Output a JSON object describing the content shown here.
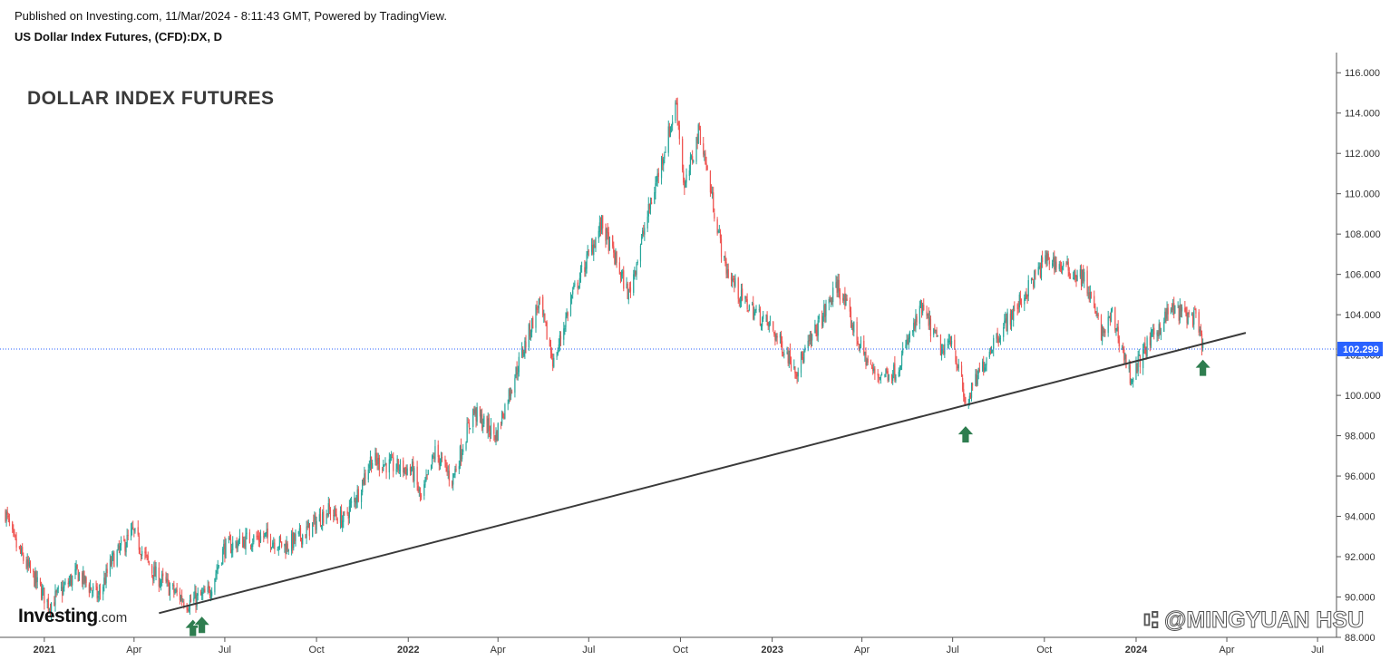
{
  "header": {
    "published": "Published on Investing.com, 11/Mar/2024 - 8:11:43 GMT, Powered by TradingView.",
    "symbol": "US Dollar Index Futures, (CFD):DX, D"
  },
  "branding": {
    "logo_main": "Investing",
    "logo_suffix": ".com",
    "watermark": "⑆ @MINGYUAN HSU"
  },
  "chart_data": {
    "type": "line",
    "title": "DOLLAR INDEX FUTURES",
    "xlabel": "",
    "ylabel": "",
    "ylim": [
      88,
      117
    ],
    "xlim": [
      "2020-11-23",
      "2024-07-20"
    ],
    "y_ticks": [
      88,
      90,
      92,
      94,
      96,
      98,
      100,
      102,
      104,
      106,
      108,
      110,
      112,
      114,
      116
    ],
    "y_tick_labels": [
      "88.000",
      "90.000",
      "92.000",
      "94.000",
      "96.000",
      "98.000",
      "100.000",
      "102.000",
      "104.000",
      "106.000",
      "108.000",
      "110.000",
      "112.000",
      "114.000",
      "116.000"
    ],
    "x_ticks": [
      {
        "date": "2021-01-01",
        "label": "2021",
        "year": true
      },
      {
        "date": "2021-04-01",
        "label": "Apr",
        "year": false
      },
      {
        "date": "2021-07-01",
        "label": "Jul",
        "year": false
      },
      {
        "date": "2021-10-01",
        "label": "Oct",
        "year": false
      },
      {
        "date": "2022-01-01",
        "label": "2022",
        "year": true
      },
      {
        "date": "2022-04-01",
        "label": "Apr",
        "year": false
      },
      {
        "date": "2022-07-01",
        "label": "Jul",
        "year": false
      },
      {
        "date": "2022-10-01",
        "label": "Oct",
        "year": false
      },
      {
        "date": "2023-01-01",
        "label": "2023",
        "year": true
      },
      {
        "date": "2023-04-01",
        "label": "Apr",
        "year": false
      },
      {
        "date": "2023-07-01",
        "label": "Jul",
        "year": false
      },
      {
        "date": "2023-10-01",
        "label": "Oct",
        "year": false
      },
      {
        "date": "2024-01-01",
        "label": "2024",
        "year": true
      },
      {
        "date": "2024-04-01",
        "label": "Apr",
        "year": false
      },
      {
        "date": "2024-07-01",
        "label": "Jul",
        "year": false
      }
    ],
    "series": [
      {
        "type": "candlestick",
        "up_color": "#26a69a",
        "down_color": "#ef5350",
        "points": [
          {
            "x": "2020-11-23",
            "y": 94.2
          },
          {
            "x": "2020-12-01",
            "y": 92.8
          },
          {
            "x": "2020-12-15",
            "y": 91.5
          },
          {
            "x": "2021-01-06",
            "y": 89.6
          },
          {
            "x": "2021-01-20",
            "y": 90.4
          },
          {
            "x": "2021-02-03",
            "y": 91.2
          },
          {
            "x": "2021-02-24",
            "y": 90.0
          },
          {
            "x": "2021-03-10",
            "y": 91.8
          },
          {
            "x": "2021-03-31",
            "y": 93.2
          },
          {
            "x": "2021-04-20",
            "y": 91.2
          },
          {
            "x": "2021-05-10",
            "y": 90.3
          },
          {
            "x": "2021-05-25",
            "y": 89.7
          },
          {
            "x": "2021-06-15",
            "y": 90.2
          },
          {
            "x": "2021-06-30",
            "y": 92.4
          },
          {
            "x": "2021-07-20",
            "y": 92.8
          },
          {
            "x": "2021-08-10",
            "y": 93.0
          },
          {
            "x": "2021-08-31",
            "y": 92.5
          },
          {
            "x": "2021-09-20",
            "y": 93.2
          },
          {
            "x": "2021-10-12",
            "y": 94.3
          },
          {
            "x": "2021-10-28",
            "y": 93.8
          },
          {
            "x": "2021-11-12",
            "y": 95.2
          },
          {
            "x": "2021-11-24",
            "y": 96.8
          },
          {
            "x": "2021-12-15",
            "y": 96.5
          },
          {
            "x": "2022-01-05",
            "y": 96.3
          },
          {
            "x": "2022-01-14",
            "y": 94.8
          },
          {
            "x": "2022-01-28",
            "y": 97.2
          },
          {
            "x": "2022-02-14",
            "y": 95.8
          },
          {
            "x": "2022-03-07",
            "y": 99.2
          },
          {
            "x": "2022-03-30",
            "y": 98.0
          },
          {
            "x": "2022-04-14",
            "y": 100.4
          },
          {
            "x": "2022-05-12",
            "y": 104.6
          },
          {
            "x": "2022-05-27",
            "y": 101.6
          },
          {
            "x": "2022-06-14",
            "y": 104.9
          },
          {
            "x": "2022-07-14",
            "y": 108.5
          },
          {
            "x": "2022-08-10",
            "y": 105.0
          },
          {
            "x": "2022-08-29",
            "y": 108.9
          },
          {
            "x": "2022-09-27",
            "y": 114.5
          },
          {
            "x": "2022-10-05",
            "y": 110.2
          },
          {
            "x": "2022-10-20",
            "y": 113.2
          },
          {
            "x": "2022-11-14",
            "y": 106.5
          },
          {
            "x": "2022-12-01",
            "y": 104.8
          },
          {
            "x": "2022-12-30",
            "y": 103.4
          },
          {
            "x": "2023-01-26",
            "y": 101.3
          },
          {
            "x": "2023-03-08",
            "y": 105.5
          },
          {
            "x": "2023-03-31",
            "y": 102.3
          },
          {
            "x": "2023-04-14",
            "y": 101.0
          },
          {
            "x": "2023-05-05",
            "y": 101.2
          },
          {
            "x": "2023-05-31",
            "y": 104.3
          },
          {
            "x": "2023-06-22",
            "y": 102.0
          },
          {
            "x": "2023-06-30",
            "y": 103.0
          },
          {
            "x": "2023-07-14",
            "y": 99.5
          },
          {
            "x": "2023-08-10",
            "y": 102.6
          },
          {
            "x": "2023-09-05",
            "y": 104.5
          },
          {
            "x": "2023-10-03",
            "y": 106.8
          },
          {
            "x": "2023-10-25",
            "y": 106.2
          },
          {
            "x": "2023-11-10",
            "y": 105.8
          },
          {
            "x": "2023-11-28",
            "y": 103.0
          },
          {
            "x": "2023-12-08",
            "y": 104.0
          },
          {
            "x": "2023-12-27",
            "y": 100.8
          },
          {
            "x": "2024-01-10",
            "y": 102.3
          },
          {
            "x": "2024-02-05",
            "y": 104.3
          },
          {
            "x": "2024-02-20",
            "y": 104.0
          },
          {
            "x": "2024-03-01",
            "y": 103.8
          },
          {
            "x": "2024-03-08",
            "y": 102.3
          }
        ]
      }
    ],
    "last_price": 102.299,
    "last_price_label": "102.299",
    "last_price_color": "#2962ff",
    "annotations": {
      "trendline": {
        "start": {
          "x": "2021-04-26",
          "y": 89.2
        },
        "end": {
          "x": "2024-04-20",
          "y": 103.1
        },
        "color": "#3a3a3a"
      },
      "arrows": [
        {
          "x": "2021-05-30",
          "y": 88.9
        },
        {
          "x": "2021-06-08",
          "y": 89.05
        },
        {
          "x": "2023-07-14",
          "y": 98.5
        },
        {
          "x": "2024-03-08",
          "y": 101.8
        }
      ],
      "arrow_color": "#2e7d4f"
    },
    "grid": false,
    "legend": "none"
  }
}
